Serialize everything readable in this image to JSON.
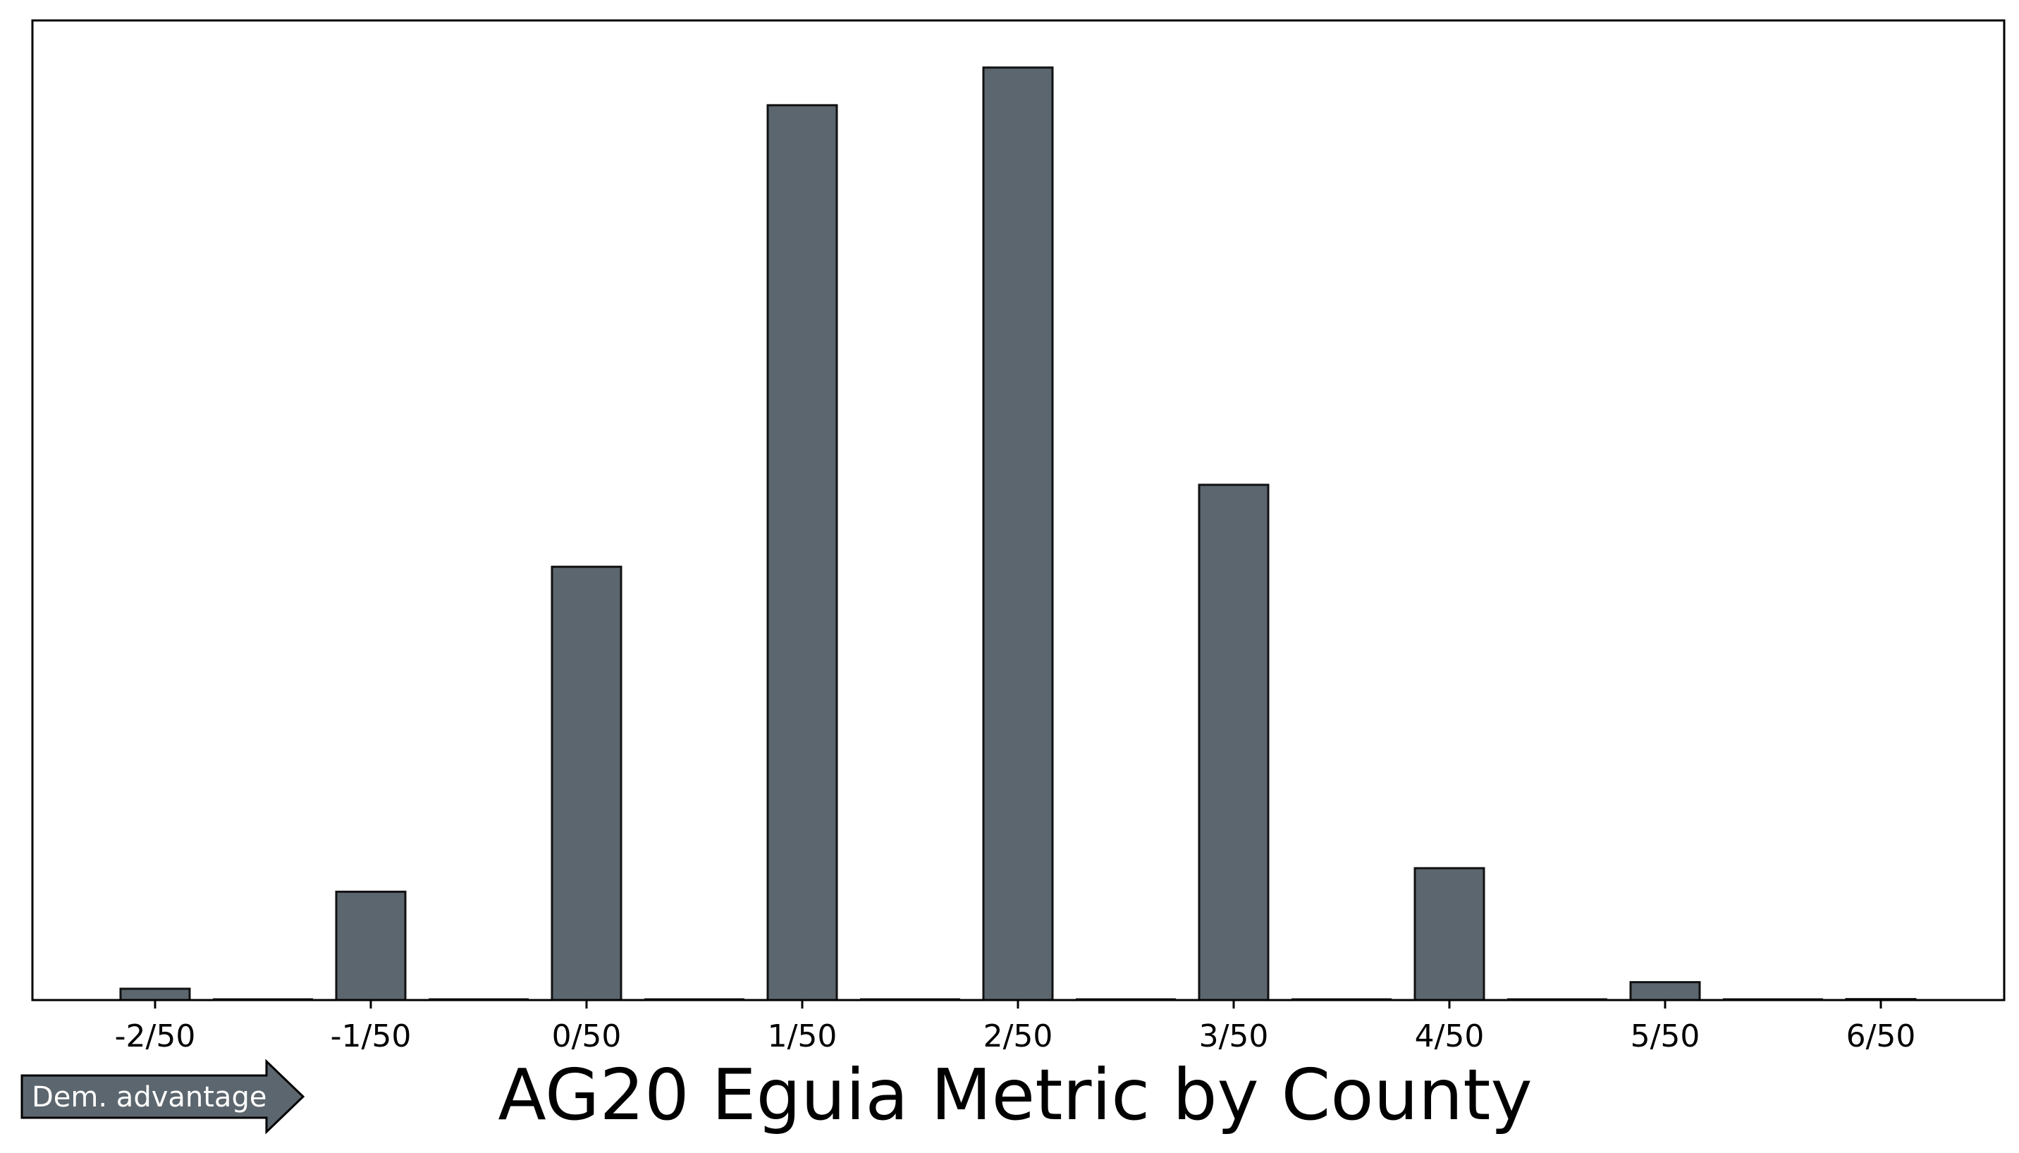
{
  "chart_data": {
    "type": "bar",
    "title": "AG20 Eguia Metric by County",
    "xlabel": "",
    "ylabel": "",
    "categories": [
      "-2/50",
      "-1/50",
      "0/50",
      "1/50",
      "2/50",
      "3/50",
      "4/50",
      "5/50",
      "6/50"
    ],
    "values": [
      1.2,
      11.5,
      46,
      95,
      99,
      54.7,
      14,
      1.9,
      0.1
    ],
    "ylim": [
      0,
      104
    ],
    "grid": false,
    "bar_color": "#5c666e",
    "edge_color": "#111111"
  },
  "advantage_badge": {
    "label": "Dem. advantage",
    "color": "#5c666e"
  }
}
